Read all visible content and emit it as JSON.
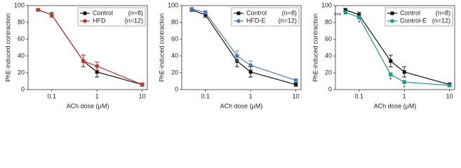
{
  "chart_data": [
    {
      "type": "line",
      "ylabel": "PhE-induced contraction",
      "xlabel": "ACh dose (μM)",
      "xscale": "log",
      "x": [
        0.05,
        0.1,
        0.5,
        1,
        10
      ],
      "xlim": [
        0.03,
        13
      ],
      "xticks": [
        0.1,
        1,
        10
      ],
      "ylim": [
        0,
        100
      ],
      "yticks": [
        0,
        20,
        40,
        60,
        80,
        100
      ],
      "series": [
        {
          "name": "Control",
          "n": "(n=8)",
          "color": "#111111",
          "marker": "square",
          "values": [
            95,
            89,
            34,
            21,
            6
          ],
          "errors": [
            1.5,
            3,
            7,
            6,
            2
          ]
        },
        {
          "name": "HFD",
          "n": "(n=12)",
          "color": "#c4372f",
          "marker": "circle",
          "values": [
            95,
            89,
            34,
            28,
            6
          ],
          "errors": [
            1.5,
            3,
            7,
            5,
            2
          ]
        }
      ]
    },
    {
      "type": "line",
      "ylabel": "PhE-induced contraction",
      "xlabel": "ACh dose (μM)",
      "xscale": "log",
      "x": [
        0.05,
        0.1,
        0.5,
        1,
        10
      ],
      "xlim": [
        0.03,
        13
      ],
      "xticks": [
        0.1,
        1,
        10
      ],
      "ylim": [
        0,
        100
      ],
      "yticks": [
        0,
        20,
        40,
        60,
        80,
        100
      ],
      "series": [
        {
          "name": "Control",
          "n": "(n=8)",
          "color": "#111111",
          "marker": "square",
          "values": [
            95,
            89,
            34,
            21,
            6
          ],
          "errors": [
            1.5,
            3,
            7,
            6,
            2
          ]
        },
        {
          "name": "HFD-E",
          "n": "(n=12)",
          "color": "#4a7bbf",
          "marker": "circle",
          "values": [
            96,
            92,
            40,
            29,
            11
          ],
          "errors": [
            1.5,
            2,
            6,
            5,
            2
          ]
        }
      ]
    },
    {
      "type": "line",
      "ylabel": "PhE-induced contraction",
      "xlabel": "ACh dose (μM)",
      "xscale": "log",
      "x": [
        0.05,
        0.1,
        0.5,
        1,
        10
      ],
      "xlim": [
        0.03,
        13
      ],
      "xticks": [
        0.1,
        1,
        10
      ],
      "ylim": [
        0,
        100
      ],
      "yticks": [
        0,
        20,
        40,
        60,
        80,
        100
      ],
      "series": [
        {
          "name": "Control",
          "n": "(n=8)",
          "color": "#111111",
          "marker": "square",
          "values": [
            95,
            89,
            34,
            21,
            6
          ],
          "errors": [
            1.5,
            3,
            7,
            6,
            2
          ]
        },
        {
          "name": "Control-E",
          "n": "(n=12)",
          "color": "#1a9a8a",
          "marker": "circle",
          "values": [
            92,
            86,
            18,
            9,
            5
          ],
          "errors": [
            2,
            2,
            2,
            2,
            1.5
          ],
          "point_labels": [
            "***",
            "*",
            "*",
            "*",
            null
          ]
        }
      ]
    }
  ]
}
